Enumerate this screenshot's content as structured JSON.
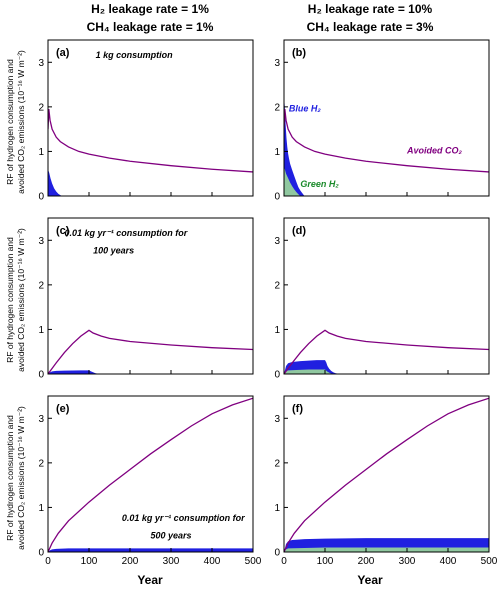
{
  "columns": [
    {
      "line1": "H₂ leakage rate = 1%",
      "line2": "CH₄ leakage rate = 1%"
    },
    {
      "line1": "H₂ leakage rate = 10%",
      "line2": "CH₄ leakage rate = 3%"
    }
  ],
  "ylabel": [
    "RF of hydrogen consumption and",
    "avoided CO₂ emissions (10⁻¹⁶ W m⁻²)"
  ],
  "xlabel": "Year",
  "colors": {
    "avoided_co2": "#800080",
    "blue_h2": "#2020e0",
    "green_h2": "#90c8a0"
  },
  "chart_data": [
    {
      "id": "a",
      "label": "(a)",
      "type": "area",
      "annotations": [
        {
          "text": "1 kg consumption",
          "x": 210,
          "y": 3.1
        }
      ],
      "xlim": [
        0,
        500
      ],
      "ylim": [
        0,
        3.5
      ],
      "xticks": [
        0,
        100,
        200,
        300,
        400,
        500
      ],
      "yticks": [
        0,
        1,
        2,
        3
      ],
      "series": [
        {
          "name": "",
          "kind": "line",
          "color": "#800080",
          "points": [
            [
              0,
              1.5
            ],
            [
              2,
              1.95
            ],
            [
              5,
              1.7
            ],
            [
              10,
              1.5
            ],
            [
              20,
              1.32
            ],
            [
              30,
              1.22
            ],
            [
              50,
              1.1
            ],
            [
              75,
              1.0
            ],
            [
              100,
              0.94
            ],
            [
              150,
              0.85
            ],
            [
              200,
              0.78
            ],
            [
              300,
              0.68
            ],
            [
              400,
              0.6
            ],
            [
              500,
              0.54
            ]
          ]
        },
        {
          "name": "",
          "kind": "area",
          "color": "#2020e0",
          "points": [
            [
              0,
              0.6
            ],
            [
              3,
              0.52
            ],
            [
              6,
              0.4
            ],
            [
              10,
              0.28
            ],
            [
              15,
              0.17
            ],
            [
              20,
              0.1
            ],
            [
              25,
              0.05
            ],
            [
              30,
              0.02
            ],
            [
              35,
              0.0
            ]
          ]
        }
      ]
    },
    {
      "id": "b",
      "label": "(b)",
      "type": "area",
      "annotations": [
        {
          "text": "Blue H₂",
          "x": 12,
          "y": 1.9
        },
        {
          "text": "Avoided CO₂",
          "x": 300,
          "y": 0.95
        },
        {
          "text": "Green H₂",
          "x": 40,
          "y": 0.2
        }
      ],
      "xlim": [
        0,
        500
      ],
      "ylim": [
        0,
        3.5
      ],
      "xticks": [
        0,
        100,
        200,
        300,
        400,
        500
      ],
      "yticks": [
        0,
        1,
        2,
        3
      ],
      "series": [
        {
          "name": "Avoided CO₂",
          "kind": "line",
          "color": "#800080",
          "points": [
            [
              0,
              1.5
            ],
            [
              2,
              1.95
            ],
            [
              5,
              1.7
            ],
            [
              10,
              1.5
            ],
            [
              20,
              1.32
            ],
            [
              30,
              1.22
            ],
            [
              50,
              1.1
            ],
            [
              75,
              1.0
            ],
            [
              100,
              0.94
            ],
            [
              150,
              0.85
            ],
            [
              200,
              0.78
            ],
            [
              300,
              0.68
            ],
            [
              400,
              0.6
            ],
            [
              500,
              0.54
            ]
          ]
        },
        {
          "name": "Blue H₂",
          "kind": "area",
          "color": "#2020e0",
          "points": [
            [
              0,
              2.25
            ],
            [
              2,
              2.0
            ],
            [
              4,
              1.6
            ],
            [
              6,
              1.3
            ],
            [
              8,
              1.1
            ],
            [
              10,
              0.95
            ],
            [
              12,
              0.85
            ],
            [
              15,
              0.72
            ],
            [
              20,
              0.58
            ],
            [
              25,
              0.45
            ],
            [
              30,
              0.32
            ],
            [
              35,
              0.2
            ],
            [
              40,
              0.12
            ],
            [
              45,
              0.06
            ],
            [
              50,
              0.0
            ]
          ]
        },
        {
          "name": "Green H₂",
          "kind": "area",
          "color": "#90c8a0",
          "points": [
            [
              0,
              0.65
            ],
            [
              2,
              0.6
            ],
            [
              5,
              0.5
            ],
            [
              10,
              0.4
            ],
            [
              15,
              0.3
            ],
            [
              20,
              0.22
            ],
            [
              25,
              0.15
            ],
            [
              30,
              0.09
            ],
            [
              35,
              0.04
            ],
            [
              40,
              0.0
            ]
          ]
        }
      ]
    },
    {
      "id": "c",
      "label": "(c)",
      "type": "area",
      "annotations": [
        {
          "text": "0.01 kg yr⁻¹ consumption for",
          "x": 190,
          "y": 3.1
        },
        {
          "text": "100 years",
          "x": 160,
          "y": 2.7
        }
      ],
      "xlim": [
        0,
        500
      ],
      "ylim": [
        0,
        3.5
      ],
      "xticks": [
        0,
        100,
        200,
        300,
        400,
        500
      ],
      "yticks": [
        0,
        1,
        2,
        3
      ],
      "series": [
        {
          "name": "",
          "kind": "line",
          "color": "#800080",
          "points": [
            [
              0,
              0
            ],
            [
              20,
              0.25
            ],
            [
              40,
              0.48
            ],
            [
              60,
              0.68
            ],
            [
              80,
              0.85
            ],
            [
              100,
              0.98
            ],
            [
              110,
              0.92
            ],
            [
              130,
              0.85
            ],
            [
              150,
              0.8
            ],
            [
              200,
              0.73
            ],
            [
              300,
              0.65
            ],
            [
              400,
              0.59
            ],
            [
              500,
              0.55
            ]
          ]
        },
        {
          "name": "",
          "kind": "area",
          "color": "#2020e0",
          "points": [
            [
              0,
              0
            ],
            [
              5,
              0.04
            ],
            [
              10,
              0.06
            ],
            [
              20,
              0.07
            ],
            [
              40,
              0.075
            ],
            [
              60,
              0.078
            ],
            [
              80,
              0.08
            ],
            [
              100,
              0.08
            ],
            [
              105,
              0.06
            ],
            [
              110,
              0.04
            ],
            [
              115,
              0.02
            ],
            [
              125,
              0.0
            ]
          ]
        }
      ]
    },
    {
      "id": "d",
      "label": "(d)",
      "type": "area",
      "annotations": [],
      "xlim": [
        0,
        500
      ],
      "ylim": [
        0,
        3.5
      ],
      "xticks": [
        0,
        100,
        200,
        300,
        400,
        500
      ],
      "yticks": [
        0,
        1,
        2,
        3
      ],
      "series": [
        {
          "name": "",
          "kind": "line",
          "color": "#800080",
          "points": [
            [
              0,
              0
            ],
            [
              20,
              0.25
            ],
            [
              40,
              0.48
            ],
            [
              60,
              0.68
            ],
            [
              80,
              0.85
            ],
            [
              100,
              0.98
            ],
            [
              110,
              0.92
            ],
            [
              130,
              0.85
            ],
            [
              150,
              0.8
            ],
            [
              200,
              0.73
            ],
            [
              300,
              0.65
            ],
            [
              400,
              0.59
            ],
            [
              500,
              0.55
            ]
          ]
        },
        {
          "name": "",
          "kind": "area",
          "color": "#2020e0",
          "points": [
            [
              0,
              0
            ],
            [
              5,
              0.18
            ],
            [
              10,
              0.24
            ],
            [
              20,
              0.27
            ],
            [
              40,
              0.29
            ],
            [
              60,
              0.3
            ],
            [
              80,
              0.31
            ],
            [
              100,
              0.31
            ],
            [
              103,
              0.26
            ],
            [
              106,
              0.18
            ],
            [
              110,
              0.12
            ],
            [
              115,
              0.07
            ],
            [
              120,
              0.04
            ],
            [
              125,
              0.02
            ],
            [
              135,
              0.0
            ]
          ]
        },
        {
          "name": "",
          "kind": "area",
          "color": "#90c8a0",
          "points": [
            [
              0,
              0
            ],
            [
              5,
              0.06
            ],
            [
              10,
              0.08
            ],
            [
              30,
              0.09
            ],
            [
              60,
              0.1
            ],
            [
              100,
              0.1
            ],
            [
              105,
              0.06
            ],
            [
              110,
              0.03
            ],
            [
              115,
              0.01
            ],
            [
              120,
              0.0
            ]
          ]
        }
      ]
    },
    {
      "id": "e",
      "label": "(e)",
      "type": "area",
      "annotations": [
        {
          "text": "0.01 kg yr⁻¹ consumption for",
          "x": 330,
          "y": 0.7
        },
        {
          "text": "500 years",
          "x": 300,
          "y": 0.3
        }
      ],
      "xlim": [
        0,
        500
      ],
      "ylim": [
        0,
        3.5
      ],
      "xticks": [
        0,
        100,
        200,
        300,
        400,
        500
      ],
      "yticks": [
        0,
        1,
        2,
        3
      ],
      "series": [
        {
          "name": "",
          "kind": "line",
          "color": "#800080",
          "points": [
            [
              0,
              0
            ],
            [
              10,
              0.2
            ],
            [
              25,
              0.42
            ],
            [
              50,
              0.7
            ],
            [
              100,
              1.12
            ],
            [
              150,
              1.5
            ],
            [
              200,
              1.85
            ],
            [
              250,
              2.2
            ],
            [
              300,
              2.52
            ],
            [
              350,
              2.83
            ],
            [
              400,
              3.1
            ],
            [
              450,
              3.3
            ],
            [
              500,
              3.45
            ]
          ]
        },
        {
          "name": "",
          "kind": "area",
          "color": "#2020e0",
          "points": [
            [
              0,
              0
            ],
            [
              5,
              0.04
            ],
            [
              10,
              0.06
            ],
            [
              20,
              0.07
            ],
            [
              50,
              0.08
            ],
            [
              100,
              0.08
            ],
            [
              500,
              0.08
            ]
          ]
        }
      ]
    },
    {
      "id": "f",
      "label": "(f)",
      "type": "area",
      "annotations": [],
      "xlim": [
        0,
        500
      ],
      "ylim": [
        0,
        3.5
      ],
      "xticks": [
        0,
        100,
        200,
        300,
        400,
        500
      ],
      "yticks": [
        0,
        1,
        2,
        3
      ],
      "series": [
        {
          "name": "",
          "kind": "line",
          "color": "#800080",
          "points": [
            [
              0,
              0
            ],
            [
              10,
              0.2
            ],
            [
              25,
              0.42
            ],
            [
              50,
              0.7
            ],
            [
              100,
              1.12
            ],
            [
              150,
              1.5
            ],
            [
              200,
              1.85
            ],
            [
              250,
              2.2
            ],
            [
              300,
              2.52
            ],
            [
              350,
              2.83
            ],
            [
              400,
              3.1
            ],
            [
              450,
              3.3
            ],
            [
              500,
              3.45
            ]
          ]
        },
        {
          "name": "",
          "kind": "area",
          "color": "#2020e0",
          "points": [
            [
              0,
              0
            ],
            [
              5,
              0.18
            ],
            [
              10,
              0.24
            ],
            [
              20,
              0.27
            ],
            [
              50,
              0.29
            ],
            [
              100,
              0.3
            ],
            [
              200,
              0.31
            ],
            [
              500,
              0.31
            ]
          ]
        },
        {
          "name": "",
          "kind": "area",
          "color": "#90c8a0",
          "points": [
            [
              0,
              0
            ],
            [
              5,
              0.06
            ],
            [
              10,
              0.08
            ],
            [
              50,
              0.09
            ],
            [
              100,
              0.1
            ],
            [
              500,
              0.1
            ]
          ]
        }
      ]
    }
  ]
}
